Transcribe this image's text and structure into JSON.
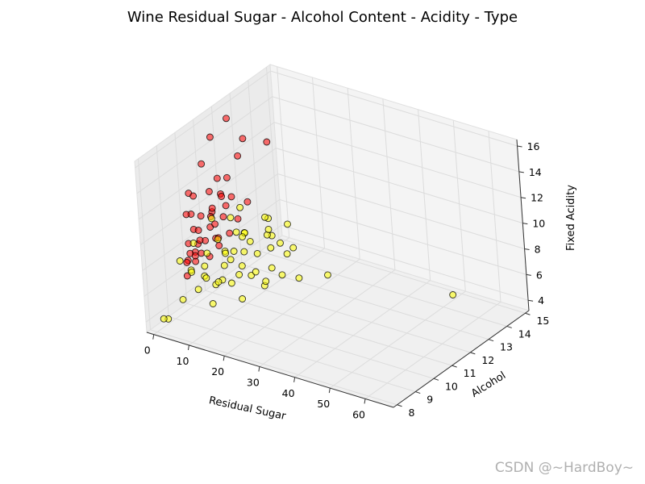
{
  "chart_data": {
    "type": "scatter",
    "projection": "3d",
    "title": "Wine Residual Sugar - Alcohol Content - Acidity - Type",
    "xlabel": "Residual Sugar",
    "ylabel": "Alcohol",
    "zlabel": "Fixed Acidity",
    "x_ticks": [
      0,
      10,
      20,
      30,
      40,
      50,
      60
    ],
    "y_ticks": [
      8,
      9,
      10,
      11,
      12,
      13,
      14,
      15
    ],
    "z_ticks": [
      4,
      6,
      8,
      10,
      12,
      14,
      16
    ],
    "xlim": [
      -2,
      68
    ],
    "ylim": [
      7.8,
      15.2
    ],
    "zlim": [
      3.2,
      16.5
    ],
    "grid": true,
    "colors": {
      "red": "#ff0000",
      "white": "#ffff00",
      "edge": "#000000",
      "pane": "#f2f2f2",
      "grid": "#dcdcdc"
    },
    "series": [
      {
        "color": "#ff0000",
        "points": [
          [
            15.5,
            11.6,
            15.6
          ],
          [
            2.0,
            12.0,
            15.9
          ],
          [
            2.5,
            11.0,
            15.5
          ],
          [
            2.2,
            10.5,
            13.9
          ],
          [
            3.0,
            12.6,
            13.8
          ],
          [
            1.8,
            9.8,
            12.3
          ],
          [
            2.6,
            11.2,
            12.1
          ],
          [
            2.0,
            10.0,
            11.9
          ],
          [
            2.3,
            12.4,
            12.6
          ],
          [
            6.0,
            10.2,
            10.8
          ],
          [
            1.6,
            11.5,
            10.5
          ],
          [
            2.1,
            9.8,
            10.7
          ],
          [
            1.9,
            12.0,
            9.8
          ],
          [
            2.8,
            10.8,
            10.2
          ],
          [
            2.0,
            9.9,
            9.4
          ],
          [
            1.7,
            10.2,
            9.0
          ],
          [
            2.2,
            10.8,
            9.5
          ],
          [
            2.5,
            11.4,
            8.9
          ],
          [
            1.9,
            9.6,
            8.6
          ],
          [
            2.4,
            10.0,
            8.2
          ],
          [
            1.8,
            10.5,
            7.9
          ],
          [
            2.1,
            11.0,
            7.6
          ],
          [
            2.0,
            9.5,
            7.4
          ],
          [
            2.6,
            9.8,
            7.8
          ],
          [
            1.5,
            10.3,
            7.1
          ],
          [
            2.3,
            11.7,
            7.3
          ],
          [
            1.9,
            9.9,
            6.9
          ],
          [
            2.2,
            10.6,
            6.6
          ],
          [
            2.0,
            9.4,
            6.3
          ],
          [
            1.8,
            11.2,
            6.8
          ],
          [
            2.5,
            10.1,
            8.4
          ],
          [
            3.5,
            10.5,
            9.1
          ],
          [
            4.0,
            10.8,
            8.0
          ],
          [
            1.6,
            9.7,
            7.7
          ],
          [
            2.2,
            12.2,
            7.9
          ],
          [
            2.9,
            11.5,
            9.7
          ],
          [
            3.8,
            10.0,
            10.5
          ],
          [
            1.7,
            10.9,
            11.3
          ],
          [
            2.4,
            9.5,
            11.0
          ],
          [
            2.1,
            11.8,
            11.5
          ],
          [
            5.5,
            10.4,
            9.6
          ],
          [
            1.4,
            10.0,
            7.2
          ],
          [
            2.7,
            9.3,
            7.5
          ],
          [
            2.0,
            12.8,
            8.6
          ],
          [
            8.5,
            10.3,
            12.1
          ]
        ]
      },
      {
        "color": "#ffff00",
        "points": [
          [
            65.8,
            11.7,
            7.8
          ],
          [
            31.6,
            11.4,
            6.8
          ],
          [
            26.0,
            10.9,
            6.6
          ],
          [
            22.0,
            9.8,
            6.8
          ],
          [
            20.0,
            10.6,
            7.2
          ],
          [
            18.0,
            11.8,
            6.9
          ],
          [
            16.5,
            9.5,
            7.5
          ],
          [
            15.0,
            10.4,
            6.4
          ],
          [
            14.0,
            12.2,
            7.0
          ],
          [
            13.0,
            11.0,
            5.9
          ],
          [
            12.5,
            9.8,
            6.2
          ],
          [
            11.0,
            10.1,
            7.6
          ],
          [
            10.5,
            11.6,
            6.5
          ],
          [
            9.5,
            12.6,
            6.8
          ],
          [
            9.0,
            9.6,
            6.0
          ],
          [
            8.2,
            10.8,
            7.3
          ],
          [
            7.5,
            11.3,
            5.6
          ],
          [
            7.0,
            9.4,
            6.7
          ],
          [
            6.5,
            12.9,
            6.3
          ],
          [
            6.0,
            10.5,
            5.2
          ],
          [
            5.5,
            11.9,
            7.4
          ],
          [
            5.0,
            9.8,
            6.9
          ],
          [
            4.6,
            10.9,
            5.8
          ],
          [
            4.2,
            12.4,
            6.1
          ],
          [
            3.8,
            9.3,
            7.0
          ],
          [
            3.4,
            11.2,
            6.5
          ],
          [
            3.0,
            10.2,
            5.4
          ],
          [
            2.6,
            12.0,
            7.1
          ],
          [
            2.2,
            9.6,
            6.4
          ],
          [
            1.8,
            11.5,
            5.9
          ],
          [
            1.5,
            10.6,
            6.8
          ],
          [
            1.3,
            9.2,
            7.6
          ],
          [
            1.1,
            12.7,
            6.2
          ],
          [
            1.6,
            10.0,
            4.6
          ],
          [
            2.0,
            11.0,
            4.2
          ],
          [
            2.5,
            9.0,
            4.9
          ],
          [
            1.2,
            8.4,
            3.9
          ],
          [
            1.0,
            8.2,
            4.1
          ],
          [
            3.2,
            13.6,
            6.6
          ],
          [
            4.5,
            13.2,
            7.2
          ],
          [
            7.8,
            12.8,
            5.5
          ],
          [
            10.0,
            9.2,
            5.0
          ],
          [
            12.0,
            12.0,
            8.1
          ],
          [
            14.5,
            10.2,
            8.4
          ],
          [
            17.5,
            9.4,
            5.8
          ],
          [
            19.5,
            11.2,
            6.0
          ],
          [
            11.5,
            10.7,
            8.8
          ],
          [
            8.8,
            9.9,
            9.2
          ],
          [
            6.8,
            11.0,
            9.6
          ],
          [
            5.2,
            10.3,
            10.1
          ],
          [
            3.6,
            12.1,
            9.0
          ],
          [
            2.8,
            9.7,
            8.6
          ],
          [
            9.8,
            13.4,
            6.9
          ],
          [
            13.5,
            11.4,
            4.8
          ],
          [
            16.0,
            12.5,
            6.5
          ]
        ]
      }
    ]
  },
  "watermark": "CSDN @~HardBoy~"
}
